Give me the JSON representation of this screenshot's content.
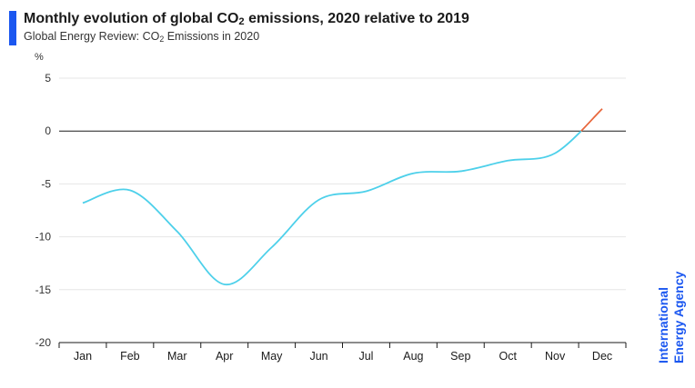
{
  "header": {
    "title_pre": "Monthly evolution of global CO",
    "title_sub": "2",
    "title_post": " emissions, 2020 relative to 2019",
    "subtitle_pre": "Global Energy Review: CO",
    "subtitle_sub": "2",
    "subtitle_post": " Emissions in 2020"
  },
  "brand": {
    "line1": "International",
    "line2": "Energy Agency",
    "color": "#1b57f0"
  },
  "colors": {
    "accent": "#1b57f0",
    "line_main": "#4dd0ea",
    "line_positive": "#e8673c",
    "grid": "#e6e6e6",
    "zero_line": "#1a1a1a"
  },
  "chart_data": {
    "type": "line",
    "title": "Monthly evolution of global CO2 emissions, 2020 relative to 2019",
    "subtitle": "Global Energy Review: CO2 Emissions in 2020",
    "ylabel": "%",
    "xlabel": "",
    "categories": [
      "Jan",
      "Feb",
      "Mar",
      "Apr",
      "May",
      "Jun",
      "Jul",
      "Aug",
      "Sep",
      "Oct",
      "Nov",
      "Dec"
    ],
    "yticks": [
      5,
      0,
      -5,
      -10,
      -15,
      -20
    ],
    "ylim": [
      -20,
      5
    ],
    "grid": true,
    "series": [
      {
        "values": [
          -6.8,
          -5.6,
          -9.5,
          -14.5,
          -11.0,
          -6.5,
          -5.7,
          -4.0,
          -3.8,
          -2.8,
          -2.1,
          2.1
        ]
      }
    ]
  }
}
